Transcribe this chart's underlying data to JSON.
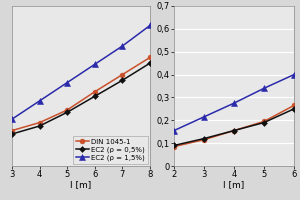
{
  "left_plot": {
    "xlabel": "l [m]",
    "xlim": [
      3,
      8
    ],
    "xticks": [
      3,
      4,
      5,
      6,
      7,
      8
    ],
    "ylim": [
      0.0,
      0.7
    ],
    "yticks": [],
    "series": [
      {
        "label": "DIN 1045-1",
        "color": "#c8502a",
        "marker": "o",
        "markersize": 3.5,
        "linewidth": 1.1,
        "x": [
          3,
          4,
          5,
          6,
          7,
          8
        ],
        "y": [
          0.155,
          0.19,
          0.245,
          0.325,
          0.4,
          0.475
        ]
      },
      {
        "label": "EC2 (ρ = 0,5%)",
        "color": "#111111",
        "marker": "D",
        "markersize": 3.0,
        "linewidth": 1.1,
        "x": [
          3,
          4,
          5,
          6,
          7,
          8
        ],
        "y": [
          0.14,
          0.175,
          0.235,
          0.305,
          0.375,
          0.45
        ]
      },
      {
        "label": "EC2 (ρ = 1,5%)",
        "color": "#2a2aaa",
        "marker": "^",
        "markersize": 5,
        "linewidth": 1.1,
        "x": [
          3,
          4,
          5,
          6,
          7,
          8
        ],
        "y": [
          0.205,
          0.285,
          0.365,
          0.445,
          0.525,
          0.615
        ]
      }
    ],
    "legend": true
  },
  "right_plot": {
    "xlabel": "l [m]",
    "xlim": [
      2,
      6
    ],
    "xticks": [
      2,
      3,
      4,
      5,
      6
    ],
    "ylim": [
      0.0,
      0.7
    ],
    "yticks": [
      0.0,
      0.1,
      0.2,
      0.3,
      0.4,
      0.5,
      0.6,
      0.7
    ],
    "yticklabels": [
      "0",
      "0,1",
      "0,2",
      "0,3",
      "0,4",
      "0,5",
      "0,6",
      "0,7"
    ],
    "series": [
      {
        "label": "DIN 1045-1",
        "color": "#c8502a",
        "marker": "o",
        "markersize": 3.5,
        "linewidth": 1.1,
        "x": [
          2,
          3,
          4,
          5,
          6
        ],
        "y": [
          0.085,
          0.115,
          0.155,
          0.195,
          0.265
        ]
      },
      {
        "label": "EC2 (ρ = 0,5%)",
        "color": "#111111",
        "marker": "D",
        "markersize": 3.0,
        "linewidth": 1.1,
        "x": [
          2,
          3,
          4,
          5,
          6
        ],
        "y": [
          0.09,
          0.12,
          0.155,
          0.19,
          0.25
        ]
      },
      {
        "label": "EC2 (ρ = 1,5%)",
        "color": "#2a2aaa",
        "marker": "^",
        "markersize": 5,
        "linewidth": 1.1,
        "x": [
          2,
          3,
          4,
          5,
          6
        ],
        "y": [
          0.155,
          0.215,
          0.275,
          0.34,
          0.4
        ]
      }
    ],
    "legend": false
  },
  "background_color": "#d8d8d8",
  "plot_bg_color": "#e8e8e8",
  "grid_color": "#ffffff",
  "tick_fontsize": 6.0,
  "label_fontsize": 6.5,
  "legend_fontsize": 5.0
}
